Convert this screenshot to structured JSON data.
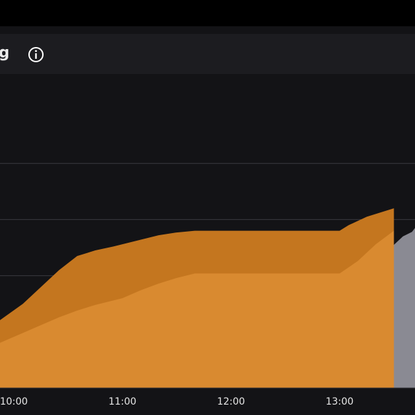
{
  "panel": {
    "title": "g",
    "info_icon": "info-circle-icon"
  },
  "colors": {
    "background": "#131316",
    "header": "#1c1c20",
    "range_fill": "#c4761f",
    "lower_fill": "#d98a30",
    "forecast_fill": "#8a8a93",
    "gridline": "#3a3a40",
    "tick_text": "#e6e6e6"
  },
  "chart_data": {
    "type": "area",
    "title": "g",
    "xlabel": "",
    "ylabel": "",
    "grid": true,
    "x_ticks": [
      "10:00",
      "11:00",
      "12:00",
      "13:00"
    ],
    "series": [
      {
        "role": "upper",
        "points": [
          [
            "09:52",
            1.2
          ],
          [
            "10:05",
            1.5
          ],
          [
            "10:15",
            1.8
          ],
          [
            "10:25",
            2.1
          ],
          [
            "10:35",
            2.35
          ],
          [
            "10:45",
            2.45
          ],
          [
            "10:55",
            2.52
          ],
          [
            "11:00",
            2.56
          ],
          [
            "11:10",
            2.64
          ],
          [
            "11:20",
            2.72
          ],
          [
            "11:30",
            2.77
          ],
          [
            "11:40",
            2.8
          ],
          [
            "12:00",
            2.8
          ],
          [
            "12:30",
            2.8
          ],
          [
            "13:00",
            2.8
          ],
          [
            "13:05",
            2.9
          ],
          [
            "13:15",
            3.05
          ],
          [
            "13:30",
            3.2
          ]
        ]
      },
      {
        "role": "lower",
        "points": [
          [
            "09:52",
            0.8
          ],
          [
            "10:05",
            0.98
          ],
          [
            "10:15",
            1.12
          ],
          [
            "10:25",
            1.26
          ],
          [
            "10:35",
            1.38
          ],
          [
            "10:45",
            1.48
          ],
          [
            "10:55",
            1.56
          ],
          [
            "11:00",
            1.6
          ],
          [
            "11:10",
            1.74
          ],
          [
            "11:20",
            1.86
          ],
          [
            "11:30",
            1.96
          ],
          [
            "11:40",
            2.04
          ],
          [
            "12:00",
            2.04
          ],
          [
            "12:30",
            2.04
          ],
          [
            "13:00",
            2.04
          ],
          [
            "13:10",
            2.26
          ],
          [
            "13:20",
            2.56
          ],
          [
            "13:30",
            2.8
          ]
        ]
      },
      {
        "role": "forecast",
        "points": [
          [
            "13:30",
            2.55
          ],
          [
            "13:35",
            2.7
          ],
          [
            "13:40",
            2.78
          ],
          [
            "13:50",
            2.85
          ]
        ]
      }
    ],
    "ylim": [
      0,
      5
    ]
  }
}
